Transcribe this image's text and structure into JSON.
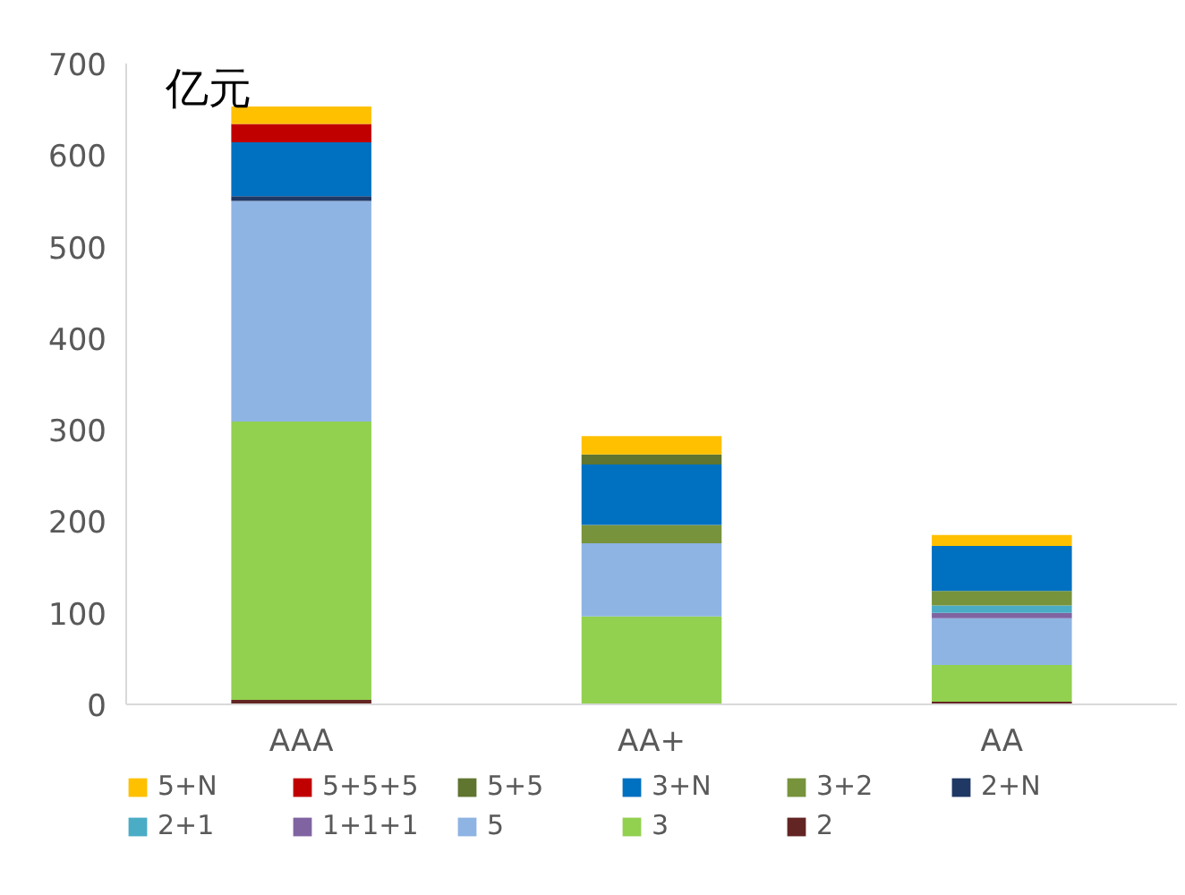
{
  "chart_data": {
    "type": "bar",
    "stacked": true,
    "ylabel": "亿元",
    "categories": [
      "AAA",
      "AA+",
      "AA"
    ],
    "series": [
      {
        "name": "2",
        "color": "#632523",
        "values": [
          5,
          0,
          3
        ]
      },
      {
        "name": "3",
        "color": "#92d050",
        "values": [
          304,
          96,
          40
        ]
      },
      {
        "name": "5",
        "color": "#8eb4e3",
        "values": [
          241,
          80,
          51
        ]
      },
      {
        "name": "1+1+1",
        "color": "#8064a2",
        "values": [
          0,
          0,
          6
        ]
      },
      {
        "name": "2+1",
        "color": "#4bacc6",
        "values": [
          0,
          0,
          8
        ]
      },
      {
        "name": "2+N",
        "color": "#1f3864",
        "values": [
          5,
          0,
          0
        ]
      },
      {
        "name": "3+2",
        "color": "#77933c",
        "values": [
          0,
          20,
          16
        ]
      },
      {
        "name": "3+N",
        "color": "#0070c0",
        "values": [
          59,
          66,
          49
        ]
      },
      {
        "name": "5+5",
        "color": "#5f7530",
        "values": [
          0,
          11,
          0
        ]
      },
      {
        "name": "5+5+5",
        "color": "#c00000",
        "values": [
          20,
          0,
          0
        ]
      },
      {
        "name": "5+N",
        "color": "#ffc000",
        "values": [
          19,
          20,
          12
        ]
      }
    ],
    "ylim": [
      0,
      700
    ],
    "yticks": [
      0,
      100,
      200,
      300,
      400,
      500,
      600,
      700
    ],
    "grid": false,
    "legend": "bottom"
  }
}
